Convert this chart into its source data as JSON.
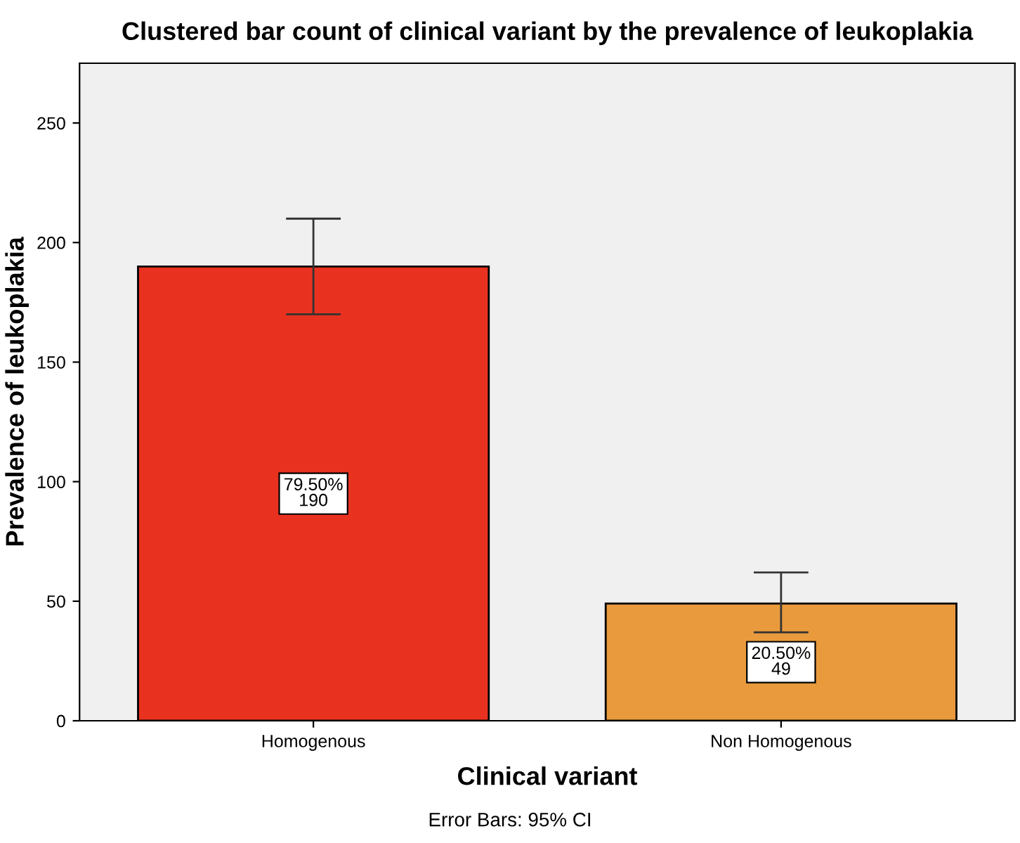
{
  "chart_data": {
    "type": "bar",
    "title": "Clustered bar count of clinical variant by the prevalence of leukoplakia",
    "xlabel": "Clinical variant",
    "ylabel": "Prevalence of leukoplakia",
    "categories": [
      "Homogenous",
      "Non Homogenous"
    ],
    "values": [
      190,
      49
    ],
    "colors": [
      "#e8321f",
      "#e89a3d"
    ],
    "errors": [
      [
        170,
        210
      ],
      [
        37,
        62
      ]
    ],
    "value_labels": [
      "79.50%\n190",
      "20.50%\n49"
    ],
    "ylim": [
      0,
      275
    ],
    "yticks": [
      0,
      50,
      100,
      150,
      200,
      250
    ],
    "grid": false,
    "annotations": [
      "Error Bars: 95% CI"
    ]
  }
}
